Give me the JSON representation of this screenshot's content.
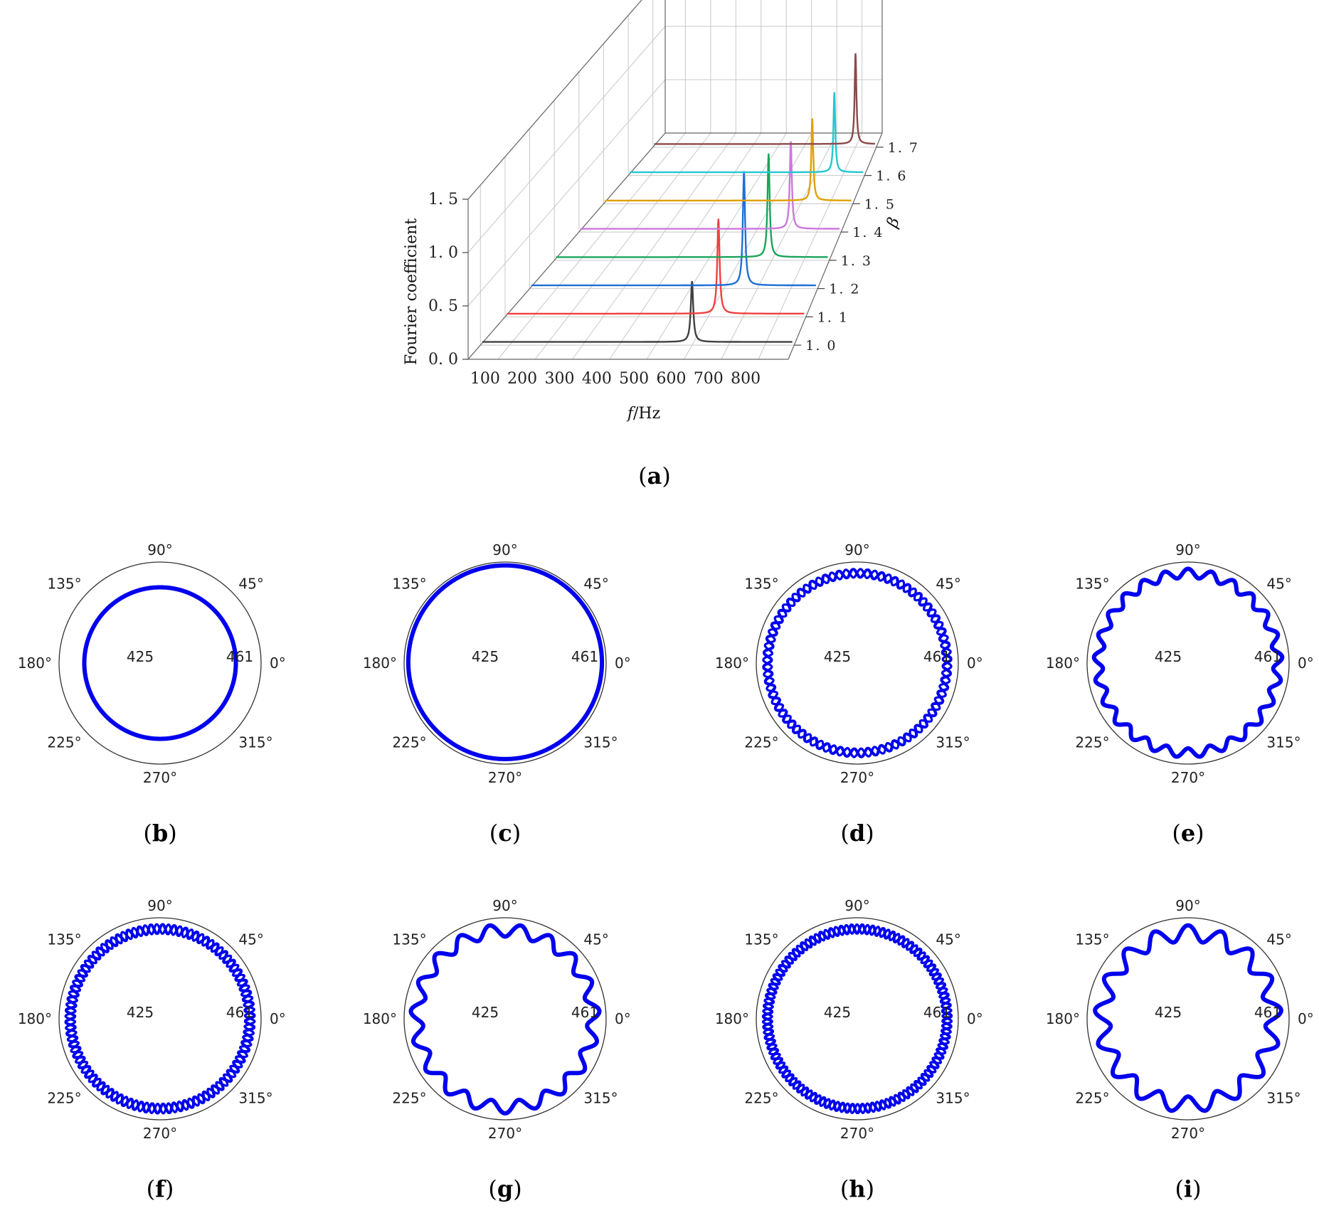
{
  "figure": {
    "panel_labels": [
      {
        "id": "a",
        "text": "a"
      },
      {
        "id": "b",
        "text": "b"
      },
      {
        "id": "c",
        "text": "c"
      },
      {
        "id": "d",
        "text": "d"
      },
      {
        "id": "e",
        "text": "e"
      },
      {
        "id": "f",
        "text": "f"
      },
      {
        "id": "g",
        "text": "g"
      },
      {
        "id": "h",
        "text": "h"
      },
      {
        "id": "i",
        "text": "i"
      }
    ]
  },
  "chart_data": [
    {
      "id": "a",
      "type": "line",
      "projection": "3d-waterfall",
      "title": "",
      "xlabel_italic": "f",
      "xlabel_rest": "/Hz",
      "ylabel": "β",
      "zlabel": "Fourier coefficient",
      "x_ticks": [
        "100",
        "200",
        "300",
        "400",
        "500",
        "600",
        "700",
        "800"
      ],
      "y_ticks": [
        "1. 0",
        "1. 1",
        "1. 2",
        "1. 3",
        "1. 4",
        "1. 5",
        "1. 6",
        "1. 7"
      ],
      "z_ticks": [
        "0. 0",
        "0. 5",
        "1. 0",
        "1. 5"
      ],
      "xlim": [
        20,
        880
      ],
      "zlim": [
        0,
        1.5
      ],
      "grid": true,
      "series": [
        {
          "name": "β=1.0",
          "beta": 1.0,
          "peak_f": 600,
          "peak_value": 0.6,
          "baseline": 0.03,
          "color": "#404040"
        },
        {
          "name": "β=1.1",
          "beta": 1.1,
          "peak_f": 630,
          "peak_value": 0.92,
          "baseline": 0.03,
          "color": "#f04040"
        },
        {
          "name": "β=1.2",
          "beta": 1.2,
          "peak_f": 660,
          "peak_value": 1.1,
          "baseline": 0.03,
          "color": "#1f6fd8"
        },
        {
          "name": "β=1.3",
          "beta": 1.3,
          "peak_f": 690,
          "peak_value": 1.0,
          "baseline": 0.03,
          "color": "#1aa55a"
        },
        {
          "name": "β=1.4",
          "beta": 1.4,
          "peak_f": 715,
          "peak_value": 0.85,
          "baseline": 0.03,
          "color": "#cc77dd"
        },
        {
          "name": "β=1.5",
          "beta": 1.5,
          "peak_f": 740,
          "peak_value": 0.8,
          "baseline": 0.03,
          "color": "#e0a000"
        },
        {
          "name": "β=1.6",
          "beta": 1.6,
          "peak_f": 770,
          "peak_value": 0.78,
          "baseline": 0.03,
          "color": "#22c8d0"
        },
        {
          "name": "β=1.7",
          "beta": 1.7,
          "peak_f": 800,
          "peak_value": 0.88,
          "baseline": 0.03,
          "color": "#8b4a4a"
        }
      ]
    },
    {
      "id": "b",
      "type": "polar",
      "angle_ticks": [
        "0°",
        "45°",
        "90°",
        "135°",
        "180°",
        "225°",
        "270°",
        "315°"
      ],
      "r_tick_labels": [
        "425",
        "461"
      ],
      "rlim": [
        425,
        461
      ],
      "curve": {
        "mean_radius": 452,
        "wave_amplitude": 0,
        "wave_count": 0,
        "strands": 1,
        "color": "#0000ee"
      }
    },
    {
      "id": "c",
      "type": "polar",
      "angle_ticks": [
        "0°",
        "45°",
        "90°",
        "135°",
        "180°",
        "225°",
        "270°",
        "315°"
      ],
      "r_tick_labels": [
        "425",
        "461"
      ],
      "rlim": [
        425,
        461
      ],
      "curve": {
        "mean_radius": 459.5,
        "wave_amplitude": 0.3,
        "wave_count": 1,
        "strands": 1,
        "color": "#0000ee"
      }
    },
    {
      "id": "d",
      "type": "polar",
      "angle_ticks": [
        "0°",
        "45°",
        "90°",
        "135°",
        "180°",
        "225°",
        "270°",
        "315°"
      ],
      "r_tick_labels": [
        "425",
        "461"
      ],
      "rlim": [
        425,
        461
      ],
      "curve": {
        "mean_radius": 457,
        "wave_amplitude": 1.5,
        "wave_count": 40,
        "strands": 3,
        "color": "#0000ee"
      }
    },
    {
      "id": "e",
      "type": "polar",
      "angle_ticks": [
        "0°",
        "45°",
        "90°",
        "135°",
        "180°",
        "225°",
        "270°",
        "315°"
      ],
      "r_tick_labels": [
        "425",
        "461"
      ],
      "rlim": [
        425,
        461
      ],
      "curve": {
        "mean_radius": 457,
        "wave_amplitude": 1.6,
        "wave_count": 25,
        "strands": 1,
        "color": "#0000ee"
      }
    },
    {
      "id": "f",
      "type": "polar",
      "angle_ticks": [
        "0°",
        "45°",
        "90°",
        "135°",
        "180°",
        "225°",
        "270°",
        "315°"
      ],
      "r_tick_labels": [
        "425",
        "461"
      ],
      "rlim": [
        425,
        461
      ],
      "curve": {
        "mean_radius": 457,
        "wave_amplitude": 1.7,
        "wave_count": 50,
        "strands": 3,
        "color": "#0000ee"
      }
    },
    {
      "id": "g",
      "type": "polar",
      "angle_ticks": [
        "0°",
        "45°",
        "90°",
        "135°",
        "180°",
        "225°",
        "270°",
        "315°"
      ],
      "r_tick_labels": [
        "425",
        "461"
      ],
      "rlim": [
        425,
        461
      ],
      "curve": {
        "mean_radius": 456.5,
        "wave_amplitude": 2.2,
        "wave_count": 19,
        "strands": 1,
        "color": "#0000ee"
      }
    },
    {
      "id": "h",
      "type": "polar",
      "angle_ticks": [
        "0°",
        "45°",
        "90°",
        "135°",
        "180°",
        "225°",
        "270°",
        "315°"
      ],
      "r_tick_labels": [
        "425",
        "461"
      ],
      "rlim": [
        425,
        461
      ],
      "curve": {
        "mean_radius": 457,
        "wave_amplitude": 1.6,
        "wave_count": 55,
        "strands": 3,
        "color": "#0000ee"
      }
    },
    {
      "id": "i",
      "type": "polar",
      "angle_ticks": [
        "0°",
        "45°",
        "90°",
        "135°",
        "180°",
        "225°",
        "270°",
        "315°"
      ],
      "r_tick_labels": [
        "425",
        "461"
      ],
      "rlim": [
        425,
        461
      ],
      "curve": {
        "mean_radius": 455.5,
        "wave_amplitude": 2.8,
        "wave_count": 17,
        "strands": 1,
        "color": "#0000ee"
      }
    }
  ]
}
